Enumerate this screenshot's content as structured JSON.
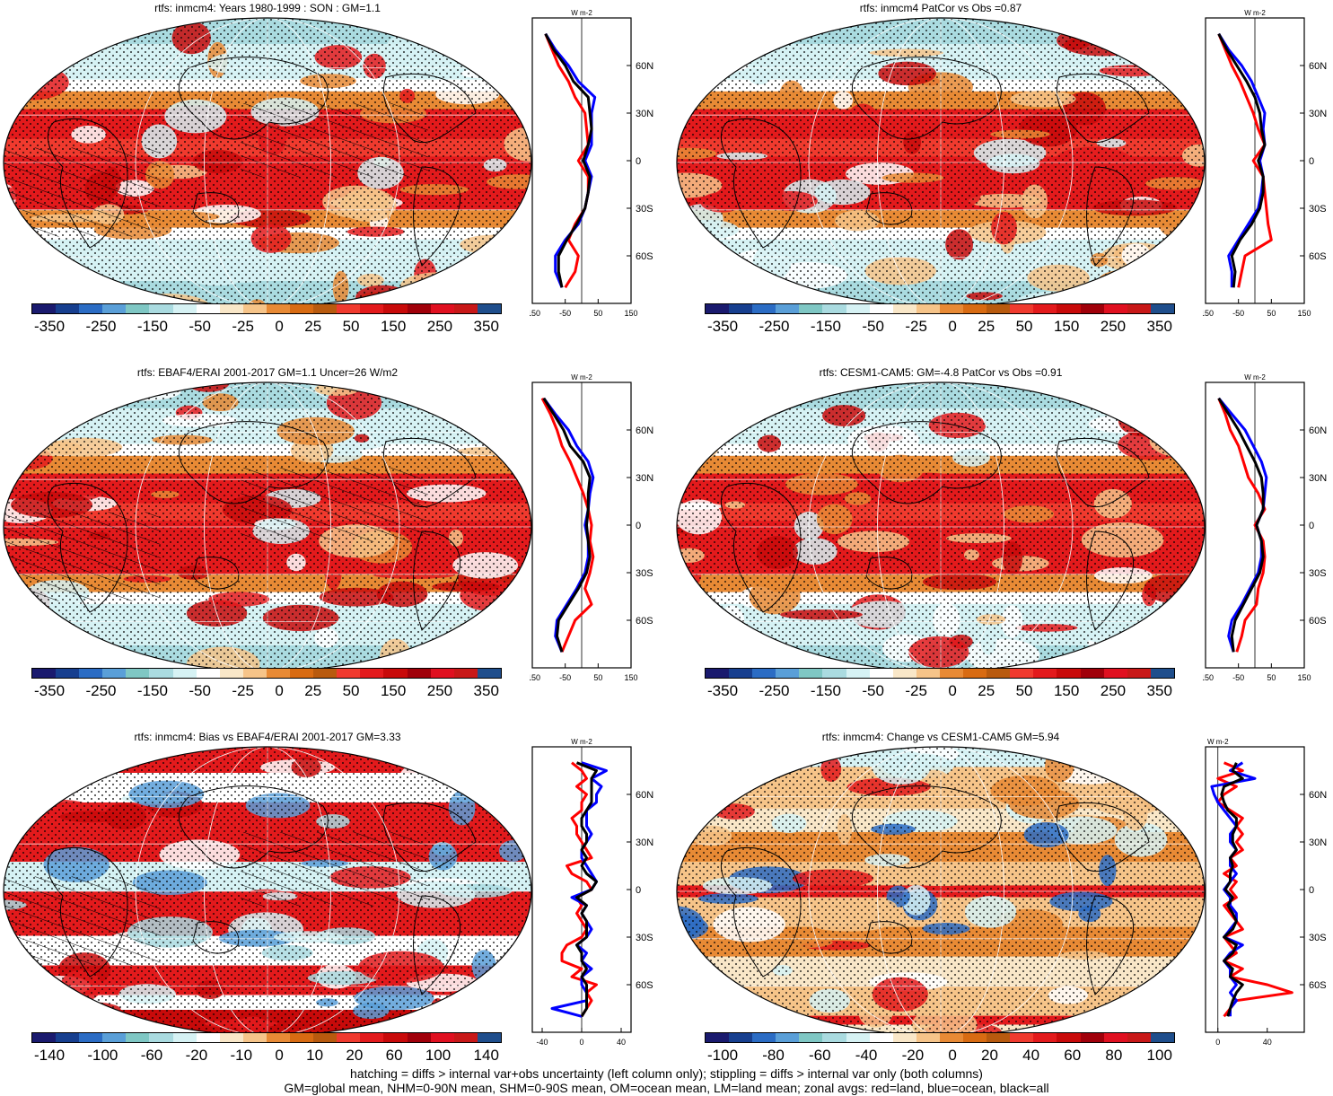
{
  "chart_data": [
    {
      "type": "map",
      "title": "rtfs: inmcm4: Years 1980-1999 : SON : GM=1.1",
      "colorbar_ticks": [
        "-350",
        "-250",
        "-150",
        "-50",
        "-25",
        "0",
        "25",
        "50",
        "150",
        "250",
        "350"
      ],
      "palette": "full",
      "hatching": true,
      "zonal": {
        "xlim": [
          -150,
          150
        ],
        "xticks": [
          "-150",
          "-50",
          "50",
          "150"
        ],
        "xtick_values": [
          -150,
          -50,
          50,
          150
        ],
        "ylabels": [
          "60N",
          "30N",
          "0",
          "30S",
          "60S"
        ],
        "unit": "W m-2",
        "lat": [
          80,
          70,
          60,
          50,
          40,
          30,
          20,
          10,
          0,
          -10,
          -20,
          -30,
          -40,
          -50,
          -60,
          -70,
          -80
        ],
        "land": [
          -110,
          -90,
          -70,
          -40,
          -20,
          10,
          15,
          20,
          -10,
          20,
          20,
          10,
          -20,
          -40,
          -10,
          -20,
          -50
        ],
        "ocean": [
          -110,
          -80,
          -40,
          -10,
          40,
          30,
          30,
          30,
          10,
          30,
          20,
          10,
          -10,
          -50,
          -80,
          -80,
          -60
        ],
        "all": [
          -110,
          -85,
          -50,
          -25,
          20,
          25,
          30,
          20,
          5,
          25,
          20,
          10,
          -15,
          -45,
          -70,
          -70,
          -60
        ]
      }
    },
    {
      "type": "map",
      "title": "rtfs: inmcm4 PatCor vs Obs =0.87",
      "colorbar_ticks": [
        "-350",
        "-250",
        "-150",
        "-50",
        "-25",
        "0",
        "25",
        "50",
        "150",
        "250",
        "350"
      ],
      "palette": "full",
      "hatching": false,
      "zonal": {
        "xlim": [
          -150,
          150
        ],
        "xticks": [
          "-150",
          "-50",
          "50",
          "150"
        ],
        "xtick_values": [
          -150,
          -50,
          50,
          150
        ],
        "ylabels": [
          "60N",
          "30N",
          "0",
          "30S",
          "60S"
        ],
        "unit": "W m-2",
        "lat": [
          80,
          70,
          60,
          50,
          40,
          30,
          20,
          10,
          0,
          -10,
          -20,
          -30,
          -40,
          -50,
          -60,
          -70,
          -80
        ],
        "land": [
          -110,
          -90,
          -70,
          -45,
          -25,
          -5,
          10,
          30,
          -5,
          25,
          30,
          35,
          40,
          50,
          -30,
          -40,
          -50
        ],
        "ocean": [
          -110,
          -80,
          -40,
          -10,
          10,
          30,
          25,
          30,
          15,
          25,
          20,
          10,
          -20,
          -50,
          -80,
          -70,
          -70
        ],
        "all": [
          -110,
          -85,
          -55,
          -25,
          0,
          15,
          20,
          30,
          10,
          25,
          25,
          15,
          -10,
          -45,
          -70,
          -60,
          -65
        ]
      }
    },
    {
      "type": "map",
      "title": "rtfs: EBAF4/ERAI 2001-2017 GM=1.1 Uncer=26 W/m2",
      "colorbar_ticks": [
        "-350",
        "-250",
        "-150",
        "-50",
        "-25",
        "0",
        "25",
        "50",
        "150",
        "250",
        "350"
      ],
      "palette": "full",
      "hatching": true,
      "zonal": {
        "xlim": [
          -150,
          150
        ],
        "xticks": [
          "-150",
          "-50",
          "50",
          "150"
        ],
        "xtick_values": [
          -150,
          -50,
          50,
          150
        ],
        "ylabels": [
          "60N",
          "30N",
          "0",
          "30S",
          "60S"
        ],
        "unit": "W m-2",
        "lat": [
          80,
          70,
          60,
          50,
          40,
          30,
          20,
          10,
          0,
          -10,
          -20,
          -30,
          -40,
          -50,
          -60,
          -70,
          -80
        ],
        "land": [
          -120,
          -95,
          -75,
          -60,
          -35,
          -15,
          5,
          20,
          30,
          25,
          35,
          25,
          10,
          30,
          -20,
          -40,
          -60
        ],
        "ocean": [
          -115,
          -80,
          -40,
          -15,
          20,
          35,
          25,
          20,
          10,
          20,
          20,
          10,
          -15,
          -45,
          -75,
          -80,
          -60
        ],
        "all": [
          -115,
          -85,
          -55,
          -35,
          5,
          25,
          20,
          20,
          15,
          20,
          25,
          15,
          -10,
          -40,
          -70,
          -75,
          -60
        ]
      }
    },
    {
      "type": "map",
      "title": "rtfs: CESM1-CAM5: GM=-4.8 PatCor vs Obs =0.91",
      "colorbar_ticks": [
        "-350",
        "-250",
        "-150",
        "-50",
        "-25",
        "0",
        "25",
        "50",
        "150",
        "250",
        "350"
      ],
      "palette": "full",
      "hatching": false,
      "zonal": {
        "xlim": [
          -150,
          150
        ],
        "xticks": [
          "-150",
          "-50",
          "50",
          "150"
        ],
        "xtick_values": [
          -150,
          -50,
          50,
          150
        ],
        "ylabels": [
          "60N",
          "30N",
          "0",
          "30S",
          "60S"
        ],
        "unit": "W m-2",
        "lat": [
          80,
          70,
          60,
          50,
          40,
          30,
          20,
          10,
          0,
          -10,
          -20,
          -30,
          -40,
          -50,
          -60,
          -70,
          -80
        ],
        "land": [
          -110,
          -90,
          -75,
          -50,
          -35,
          -20,
          10,
          30,
          0,
          25,
          30,
          25,
          10,
          5,
          -30,
          -40,
          -55
        ],
        "ocean": [
          -110,
          -70,
          -30,
          -5,
          20,
          35,
          30,
          25,
          5,
          20,
          20,
          10,
          -15,
          -40,
          -70,
          -80,
          -65
        ],
        "all": [
          -110,
          -80,
          -50,
          -25,
          0,
          20,
          25,
          25,
          5,
          20,
          25,
          15,
          -10,
          -35,
          -60,
          -70,
          -65
        ]
      }
    },
    {
      "type": "map",
      "title": "rtfs: inmcm4: Bias vs EBAF4/ERAI 2001-2017  GM=3.33",
      "colorbar_ticks": [
        "-140",
        "-100",
        "-60",
        "-20",
        "-10",
        "0",
        "10",
        "20",
        "60",
        "100",
        "140"
      ],
      "palette": "full",
      "hatching": true,
      "zonal": {
        "xlim": [
          -50,
          50
        ],
        "xticks": [
          "-40",
          "0",
          "40"
        ],
        "xtick_values": [
          -40,
          0,
          40
        ],
        "ylabels": [
          "60N",
          "30N",
          "0",
          "30S",
          "60S"
        ],
        "unit": "W m-2",
        "lat": [
          80,
          75,
          70,
          65,
          60,
          55,
          50,
          45,
          40,
          35,
          30,
          25,
          20,
          15,
          10,
          5,
          0,
          -5,
          -10,
          -15,
          -20,
          -25,
          -30,
          -35,
          -40,
          -45,
          -50,
          -55,
          -60,
          -65,
          -70,
          -75,
          -80
        ],
        "land": [
          -10,
          0,
          5,
          -5,
          5,
          0,
          0,
          -10,
          -5,
          -5,
          0,
          5,
          10,
          -15,
          -10,
          5,
          10,
          -5,
          0,
          -5,
          0,
          5,
          0,
          -15,
          -20,
          -20,
          0,
          -10,
          15,
          5,
          10,
          5,
          0
        ],
        "ocean": [
          0,
          25,
          10,
          20,
          15,
          15,
          5,
          5,
          5,
          10,
          5,
          0,
          0,
          5,
          10,
          15,
          10,
          -10,
          5,
          0,
          5,
          10,
          5,
          -5,
          5,
          0,
          10,
          0,
          0,
          5,
          5,
          -30,
          0
        ],
        "all": [
          -5,
          15,
          10,
          10,
          10,
          10,
          5,
          0,
          0,
          5,
          5,
          0,
          5,
          0,
          5,
          15,
          10,
          -5,
          5,
          0,
          5,
          5,
          5,
          -5,
          0,
          0,
          5,
          0,
          5,
          5,
          5,
          5,
          0
        ]
      }
    },
    {
      "type": "map",
      "title": "rtfs: inmcm4: Change vs CESM1-CAM5 GM=5.94",
      "colorbar_ticks": [
        "-100",
        "-80",
        "-60",
        "-40",
        "-20",
        "0",
        "20",
        "40",
        "60",
        "80",
        "100"
      ],
      "palette": "warm",
      "hatching": false,
      "zonal": {
        "xlim": [
          -10,
          70
        ],
        "xticks": [
          "0",
          "40"
        ],
        "xtick_values": [
          0,
          40
        ],
        "ylabels": [
          "60N",
          "30N",
          "0",
          "30S",
          "60S"
        ],
        "unit": "W m-2",
        "lat": [
          80,
          75,
          70,
          65,
          60,
          55,
          50,
          45,
          40,
          35,
          30,
          25,
          20,
          15,
          10,
          5,
          0,
          -5,
          -10,
          -15,
          -20,
          -25,
          -30,
          -35,
          -40,
          -45,
          -50,
          -55,
          -60,
          -65,
          -70,
          -75,
          -80
        ],
        "land": [
          5,
          20,
          0,
          15,
          5,
          0,
          10,
          20,
          15,
          20,
          15,
          20,
          10,
          15,
          5,
          15,
          10,
          15,
          5,
          10,
          15,
          20,
          5,
          10,
          15,
          5,
          20,
          10,
          40,
          60,
          15,
          10,
          5
        ],
        "ocean": [
          20,
          10,
          30,
          -5,
          -3,
          0,
          5,
          10,
          15,
          10,
          10,
          15,
          10,
          10,
          15,
          10,
          5,
          10,
          10,
          15,
          15,
          10,
          5,
          20,
          10,
          5,
          10,
          10,
          15,
          10,
          15,
          10,
          10
        ],
        "all": [
          15,
          12,
          20,
          5,
          3,
          5,
          8,
          15,
          15,
          12,
          12,
          15,
          10,
          12,
          10,
          10,
          6,
          12,
          8,
          12,
          15,
          12,
          5,
          15,
          12,
          5,
          12,
          10,
          20,
          15,
          12,
          10,
          8
        ]
      }
    }
  ],
  "footer": [
    "hatching = diffs > internal var+obs uncertainty (left column only); stippling = diffs > internal var only (both columns)",
    "GM=global mean, NHM=0-90N mean, SHM=0-90S mean, OM=ocean mean, LM=land mean; zonal avgs: red=land, blue=ocean, black=all"
  ],
  "colors": {
    "land": "#ff0000",
    "ocean": "#0000ff",
    "all": "#000000",
    "palette_full": [
      "#1a1a6e",
      "#173f8f",
      "#2b6cc4",
      "#5a9fd8",
      "#7fc7c4",
      "#aadbe0",
      "#d6f2f4",
      "#ffffff",
      "#f9e7c8",
      "#f6c489",
      "#e88a35",
      "#d86b12",
      "#b85a0e",
      "#f03a2e",
      "#e31a1c",
      "#c80a0a",
      "#a0000a",
      "#e01020",
      "#c81818",
      "#1f4e8c"
    ],
    "palette_warm": [
      "#1a1a6e",
      "#173f8f",
      "#2b6cc4",
      "#5a9fd8",
      "#7fc7c4",
      "#aadbe0",
      "#d6f2f4",
      "#ffffff",
      "#f9e7c8",
      "#f6c489",
      "#e88a35",
      "#d86b12",
      "#b85a0e",
      "#f03a2e",
      "#e31a1c",
      "#c80a0a",
      "#a0000a",
      "#e01020",
      "#c81818",
      "#1f4e8c"
    ]
  }
}
